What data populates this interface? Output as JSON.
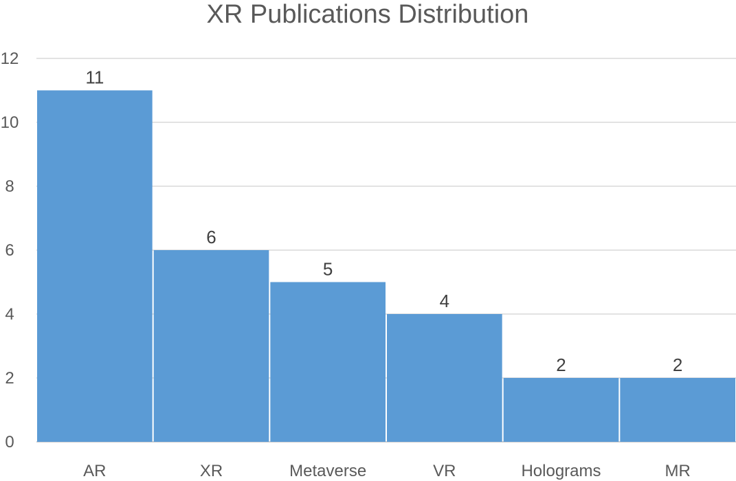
{
  "chart_data": {
    "type": "bar",
    "title": "XR Publications Distribution",
    "categories": [
      "AR",
      "XR",
      "Metaverse",
      "VR",
      "Holograms",
      "MR"
    ],
    "values": [
      11,
      6,
      5,
      4,
      2,
      2
    ],
    "data_labels": [
      "11",
      "6",
      "5",
      "4",
      "2",
      "2"
    ],
    "y_ticks": [
      "0",
      "2",
      "4",
      "6",
      "8",
      "10",
      "12"
    ],
    "ylim": [
      0,
      12
    ],
    "grid": true,
    "legend": "none",
    "bar_color": "#5b9bd5"
  }
}
